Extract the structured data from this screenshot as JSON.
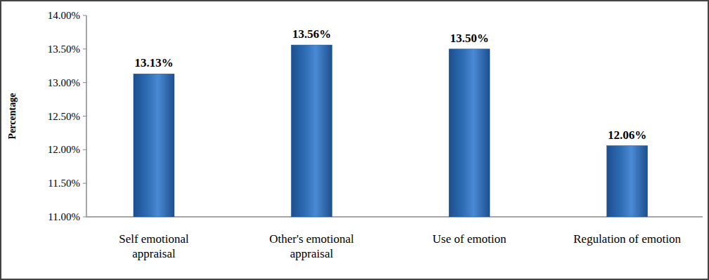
{
  "chart_data": {
    "type": "bar",
    "y_label": "Percentage",
    "categories": [
      "Self emotional\nappraisal",
      "Other's emotional\nappraisal",
      "Use of emotion",
      "Regulation of emotion"
    ],
    "values": [
      13.13,
      13.56,
      13.5,
      12.06
    ],
    "value_labels": [
      "13.13%",
      "13.56%",
      "13.50%",
      "12.06%"
    ],
    "color": "#2f6db5",
    "ylim": [
      11,
      14
    ],
    "yticks": [
      {
        "value": 11,
        "label": "11.00%"
      },
      {
        "value": 11.5,
        "label": "11.50%"
      },
      {
        "value": 12,
        "label": "12.00%"
      },
      {
        "value": 12.5,
        "label": "12.50%"
      },
      {
        "value": 13,
        "label": "13.00%"
      },
      {
        "value": 13.5,
        "label": "13.50%"
      },
      {
        "value": 14,
        "label": "14.00%"
      }
    ],
    "grid": false,
    "data_labels": true
  }
}
